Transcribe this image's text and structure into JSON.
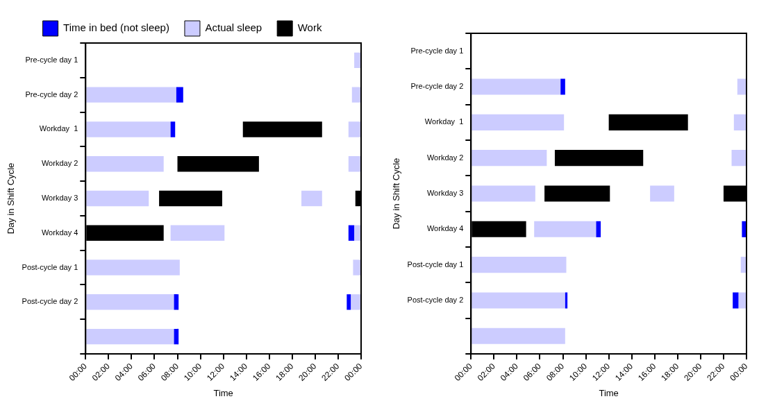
{
  "chart_data": [
    {
      "type": "bar",
      "orientation": "horizontal",
      "legend": "top",
      "xlabel": "Time",
      "ylabel": "Day in Shift Cycle",
      "categories": [
        "Pre-cycle day 1",
        "Pre-cycle day 2",
        "Workday  1",
        "Workday 2",
        "Workday 3",
        "Workday 4",
        "Post-cycle day 1",
        "Post-cycle day 2",
        null
      ],
      "xlim": [
        0,
        24
      ],
      "xticks": [
        {
          "value": 0,
          "label": "00:00"
        },
        {
          "value": 2,
          "label": "02:00"
        },
        {
          "value": 4,
          "label": "04:00"
        },
        {
          "value": 6,
          "label": "06:00"
        },
        {
          "value": 8,
          "label": "08:00"
        },
        {
          "value": 10,
          "label": "10:00"
        },
        {
          "value": 12,
          "label": "12:00"
        },
        {
          "value": 14,
          "label": "14:00"
        },
        {
          "value": 16,
          "label": "16:00"
        },
        {
          "value": 18,
          "label": "18:00"
        },
        {
          "value": 20,
          "label": "20:00"
        },
        {
          "value": 22,
          "label": "22:00"
        },
        {
          "value": 24,
          "label": "00:00"
        }
      ],
      "series": [
        {
          "name": "Time in bed (not sleep)",
          "color": "#0000ff",
          "base": [
            null,
            7.9,
            7.4,
            null,
            null,
            null,
            null,
            7.7,
            7.7
          ],
          "values": [
            null,
            0.6,
            0.4,
            null,
            null,
            null,
            null,
            0.4,
            0.4
          ]
        },
        {
          "name": "Actual sleep",
          "color": "#ccccff",
          "base": [
            null,
            0,
            0,
            0,
            0,
            null,
            0,
            0,
            0
          ],
          "values": [
            null,
            7.9,
            7.4,
            6.8,
            5.5,
            null,
            8.2,
            7.7,
            7.7
          ]
        },
        {
          "name": "Work",
          "color": "#000000",
          "base": [
            null,
            null,
            13.7,
            8.0,
            6.4,
            0,
            null,
            null,
            null
          ],
          "values": [
            null,
            null,
            6.9,
            7.1,
            5.5,
            6.8,
            null,
            null,
            null
          ]
        },
        {
          "color": "#ccccff",
          "base": [
            null,
            null,
            null,
            null,
            18.8,
            7.4,
            null,
            null,
            null
          ],
          "values": [
            null,
            null,
            null,
            null,
            1.8,
            4.7,
            null,
            null,
            null
          ]
        },
        {
          "color": "#000000",
          "base": [
            null,
            null,
            null,
            null,
            23.5,
            null,
            null,
            null,
            null
          ],
          "values": [
            null,
            null,
            null,
            null,
            0.5,
            null,
            null,
            null,
            null
          ]
        },
        {
          "color": "#0000ff",
          "base": [
            null,
            null,
            null,
            null,
            null,
            22.9,
            null,
            22.75,
            null
          ],
          "values": [
            null,
            null,
            null,
            null,
            null,
            0.5,
            null,
            0.35,
            null
          ]
        },
        {
          "color": "#ccccff",
          "base": [
            23.4,
            23.2,
            22.9,
            22.9,
            null,
            23.4,
            23.3,
            23.1,
            null
          ],
          "values": [
            0.6,
            0.8,
            1.1,
            1.1,
            null,
            0.6,
            0.7,
            0.9,
            null
          ]
        }
      ]
    },
    {
      "type": "bar",
      "orientation": "horizontal",
      "xlabel": "Time",
      "ylabel": "Day in Shift Cycle",
      "categories": [
        "Pre-cycle day 1",
        "Pre-cycle day 2",
        "Workday  1",
        "Workday 2",
        "Workday 3",
        "Workday 4",
        "Post-cycle day 1",
        "Post-cycle day 2",
        null
      ],
      "xlim": [
        0,
        24
      ],
      "xticks": [
        {
          "value": 0,
          "label": "00:00"
        },
        {
          "value": 2,
          "label": "02:00"
        },
        {
          "value": 4,
          "label": "04:00"
        },
        {
          "value": 6,
          "label": "06:00"
        },
        {
          "value": 8,
          "label": "08:00"
        },
        {
          "value": 10,
          "label": "10:00"
        },
        {
          "value": 12,
          "label": "12:00"
        },
        {
          "value": 14,
          "label": "14:00"
        },
        {
          "value": 16,
          "label": "16:00"
        },
        {
          "value": 18,
          "label": "18:00"
        },
        {
          "value": 20,
          "label": "20:00"
        },
        {
          "value": 22,
          "label": "22:00"
        },
        {
          "value": 24,
          "label": "00:00"
        }
      ],
      "series": [
        {
          "color": "#0000ff",
          "base": [
            null,
            7.8,
            null,
            null,
            null,
            10.9,
            null,
            8.2,
            null
          ],
          "values": [
            null,
            0.4,
            null,
            null,
            null,
            0.4,
            null,
            0.2,
            null
          ]
        },
        {
          "color": "#ccccff",
          "base": [
            null,
            0,
            0,
            0,
            0,
            null,
            0,
            0,
            0
          ],
          "values": [
            null,
            7.8,
            8.1,
            6.6,
            5.6,
            null,
            8.3,
            8.2,
            8.2
          ]
        },
        {
          "color": "#000000",
          "base": [
            null,
            null,
            12.0,
            7.3,
            6.4,
            0,
            null,
            null,
            null
          ],
          "values": [
            null,
            null,
            6.9,
            7.7,
            5.7,
            4.8,
            null,
            null,
            null
          ]
        },
        {
          "color": "#ccccff",
          "base": [
            null,
            null,
            null,
            null,
            15.6,
            5.5,
            null,
            null,
            null
          ],
          "values": [
            null,
            null,
            null,
            null,
            2.1,
            5.4,
            null,
            null,
            null
          ]
        },
        {
          "color": "#000000",
          "base": [
            null,
            null,
            null,
            null,
            22,
            null,
            null,
            null,
            null
          ],
          "values": [
            null,
            null,
            null,
            null,
            2,
            null,
            null,
            null,
            null
          ]
        },
        {
          "color": "#0000ff",
          "base": [
            null,
            null,
            null,
            null,
            null,
            23.6,
            null,
            22.8,
            null
          ],
          "values": [
            null,
            null,
            null,
            null,
            null,
            0.4,
            null,
            0.5,
            null
          ]
        },
        {
          "color": "#ccccff",
          "base": [
            null,
            23.2,
            22.9,
            22.7,
            null,
            null,
            23.5,
            23.3,
            null
          ],
          "values": [
            null,
            0.8,
            1.1,
            1.3,
            null,
            null,
            0.5,
            0.7,
            null
          ]
        }
      ]
    }
  ]
}
